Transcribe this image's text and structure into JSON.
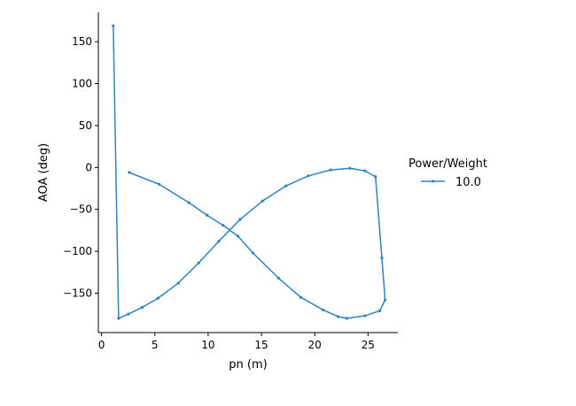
{
  "chart_data": {
    "type": "line",
    "title": "",
    "xlabel": "pn (m)",
    "ylabel": "AOA (deg)",
    "xlim": [
      -0.3,
      27.8
    ],
    "ylim": [
      -197,
      185
    ],
    "xticks": [
      0,
      5,
      10,
      15,
      20,
      25
    ],
    "yticks": [
      150,
      100,
      50,
      0,
      -50,
      -100,
      -150
    ],
    "xtick_labels": [
      "0",
      "5",
      "10",
      "15",
      "20",
      "25"
    ],
    "ytick_labels": [
      "150",
      "100",
      "50",
      "0",
      "−50",
      "−100",
      "−150"
    ],
    "legend": {
      "title": "Power/Weight",
      "position": "right"
    },
    "color": "#3182bd",
    "series": [
      {
        "name": "10.0",
        "x": [
          1.1,
          1.6,
          2.5,
          3.8,
          5.3,
          7.2,
          9.1,
          11.0,
          13.0,
          15.1,
          17.3,
          19.4,
          21.5,
          23.3,
          24.7,
          25.7,
          26.3,
          26.6,
          26.1,
          24.7,
          23.0,
          22.2,
          20.8,
          18.7,
          16.6,
          14.2,
          12.8,
          11.4,
          9.9,
          8.2,
          5.4,
          2.6
        ],
        "y": [
          169,
          -180,
          -175,
          -167,
          -156,
          -138,
          -114,
          -88,
          -62,
          -40,
          -22,
          -10,
          -3,
          -1,
          -4,
          -11,
          -108,
          -158,
          -171,
          -177,
          -180,
          -178,
          -170,
          -155,
          -132,
          -102,
          -82,
          -69,
          -57,
          -42,
          -20,
          -6
        ]
      }
    ]
  }
}
